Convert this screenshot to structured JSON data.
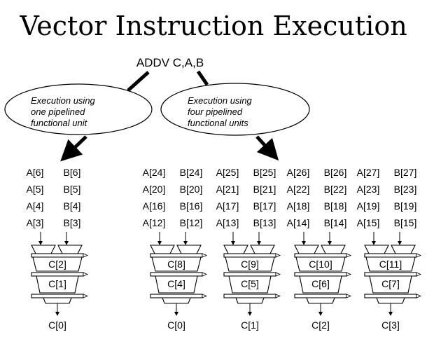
{
  "slide": {
    "title": "Vector Instruction Execution",
    "instruction": "ADDV C,A,B"
  },
  "bubbles": [
    {
      "lines": [
        "Execution using",
        "one pipelined",
        "functional unit"
      ]
    },
    {
      "lines": [
        "Execution using",
        "four pipelined",
        "functional units"
      ]
    }
  ],
  "units": [
    {
      "rows": [
        [
          "A[6]",
          "B[6]"
        ],
        [
          "A[5]",
          "B[5]"
        ],
        [
          "A[4]",
          "B[4]"
        ],
        [
          "A[3]",
          "B[3]"
        ]
      ],
      "stages": [
        "C[2]",
        "C[1]"
      ],
      "output": "C[0]"
    },
    {
      "rows": [
        [
          "A[24]",
          "B[24]"
        ],
        [
          "A[20]",
          "B[20]"
        ],
        [
          "A[16]",
          "B[16]"
        ],
        [
          "A[12]",
          "B[12]"
        ]
      ],
      "stages": [
        "C[8]",
        "C[4]"
      ],
      "output": "C[0]"
    },
    {
      "rows": [
        [
          "A[25]",
          "B[25]"
        ],
        [
          "A[21]",
          "B[21]"
        ],
        [
          "A[17]",
          "B[17]"
        ],
        [
          "A[13]",
          "B[13]"
        ]
      ],
      "stages": [
        "C[9]",
        "C[5]"
      ],
      "output": "C[1]"
    },
    {
      "rows": [
        [
          "A[26]",
          "B[26]"
        ],
        [
          "A[22]",
          "B[22]"
        ],
        [
          "A[18]",
          "B[18]"
        ],
        [
          "A[14]",
          "B[14]"
        ]
      ],
      "stages": [
        "C[10]",
        "C[6]"
      ],
      "output": "C[2]"
    },
    {
      "rows": [
        [
          "A[27]",
          "B[27]"
        ],
        [
          "A[23]",
          "B[23]"
        ],
        [
          "A[19]",
          "B[19]"
        ],
        [
          "A[15]",
          "B[15]"
        ]
      ],
      "stages": [
        "C[11]",
        "C[7]"
      ],
      "output": "C[3]"
    }
  ]
}
